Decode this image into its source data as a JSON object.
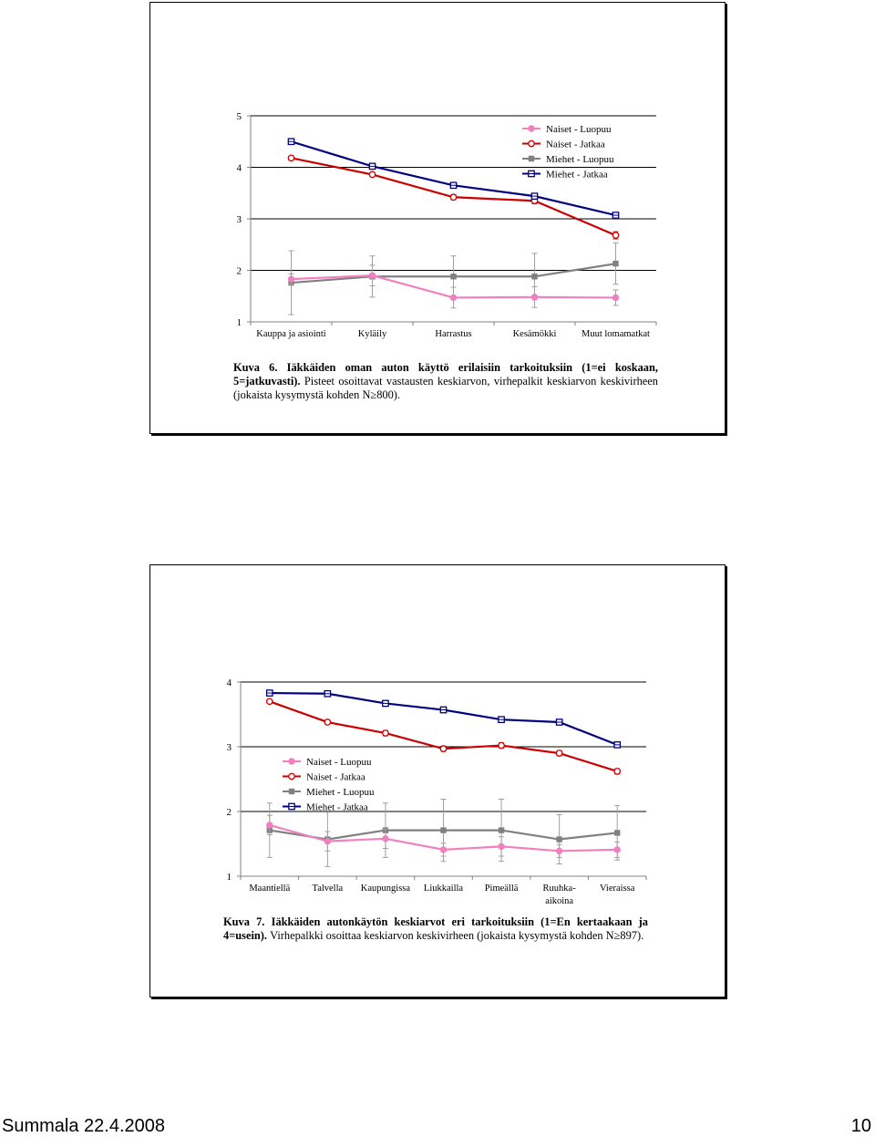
{
  "chart_data": [
    {
      "type": "line",
      "ylim": [
        1,
        5
      ],
      "yticks": [
        "1",
        "2",
        "3",
        "4",
        "5"
      ],
      "categories": [
        "Kauppa ja asiointi",
        "Kyläily",
        "Harrastus",
        "Kesämökki",
        "Muut lomamatkat"
      ],
      "legend_position": "top-right",
      "series": [
        {
          "name": "Naiset - Luopuu",
          "color": "#f080c0",
          "marker": "circle-filled",
          "values": [
            1.83,
            1.9,
            1.47,
            1.48,
            1.47
          ],
          "err": [
            0.1,
            0.2,
            0.2,
            0.2,
            0.15
          ]
        },
        {
          "name": "Naiset - Jatkaa",
          "color": "#cc0000",
          "marker": "circle-open",
          "values": [
            4.18,
            3.86,
            3.42,
            3.35,
            2.68
          ],
          "err": [
            0.04,
            0.04,
            0.05,
            0.06,
            0.07
          ]
        },
        {
          "name": "Miehet - Luopuu",
          "color": "#808080",
          "marker": "square-filled",
          "values": [
            1.76,
            1.88,
            1.88,
            1.88,
            2.13
          ],
          "err": [
            0.62,
            0.4,
            0.4,
            0.45,
            0.4
          ]
        },
        {
          "name": "Miehet - Jatkaa",
          "color": "#000080",
          "marker": "square-open",
          "values": [
            4.5,
            4.02,
            3.65,
            3.44,
            3.07
          ],
          "err": [
            0.03,
            0.03,
            0.03,
            0.04,
            0.05
          ]
        }
      ]
    },
    {
      "type": "line",
      "ylim": [
        1,
        4
      ],
      "yticks": [
        "1",
        "2",
        "3",
        "4"
      ],
      "categories": [
        "Maantiellä",
        "Talvella",
        "Kaupungissa",
        "Liukkailla",
        "Pimeällä",
        "Ruuhka-\naikoina",
        "Vieraissa"
      ],
      "legend_position": "middle-left",
      "series": [
        {
          "name": "Naiset - Luopuu",
          "color": "#f080c0",
          "marker": "circle-filled",
          "values": [
            1.79,
            1.54,
            1.58,
            1.41,
            1.46,
            1.39,
            1.41
          ],
          "err": [
            0.15,
            0.15,
            0.15,
            0.1,
            0.15,
            0.1,
            0.12
          ]
        },
        {
          "name": "Naiset - Jatkaa",
          "color": "#cc0000",
          "marker": "circle-open",
          "values": [
            3.7,
            3.38,
            3.21,
            2.97,
            3.02,
            2.9,
            2.62
          ],
          "err": [
            0.03,
            0.03,
            0.04,
            0.04,
            0.04,
            0.04,
            0.04
          ]
        },
        {
          "name": "Miehet - Luopuu",
          "color": "#808080",
          "marker": "square-filled",
          "values": [
            1.71,
            1.57,
            1.71,
            1.71,
            1.71,
            1.57,
            1.67
          ],
          "err": [
            0.42,
            0.42,
            0.42,
            0.48,
            0.48,
            0.38,
            0.42
          ]
        },
        {
          "name": "Miehet - Jatkaa",
          "color": "#000080",
          "marker": "square-open",
          "values": [
            3.83,
            3.82,
            3.67,
            3.57,
            3.42,
            3.38,
            3.03
          ],
          "err": [
            0.02,
            0.02,
            0.02,
            0.02,
            0.02,
            0.02,
            0.02
          ]
        }
      ]
    }
  ],
  "captions": {
    "fig1": {
      "label": "Kuva 6.",
      "text_bold": "Iäkkäiden oman auton käyttö erilaisiin tarkoituksiin (1=ei koskaan, 5=jatkuvasti).",
      "text_rest": "Pisteet osoittavat vastausten keskiarvon, virhepalkit keskiarvon keskivirheen (jokaista kysymystä kohden N≥800)."
    },
    "fig2": {
      "label": "Kuva 7.",
      "text_bold": "Iäkkäiden autonkäytön keskiarvot eri tarkoituksiin (1=En kertaakaan ja 4=usein).",
      "text_rest": "Virhepalkki osoittaa keskiarvon keskivirheen (jokaista kysymystä kohden N≥897)."
    }
  },
  "footer": {
    "left": "Summala 22.4.2008",
    "right": "10"
  }
}
